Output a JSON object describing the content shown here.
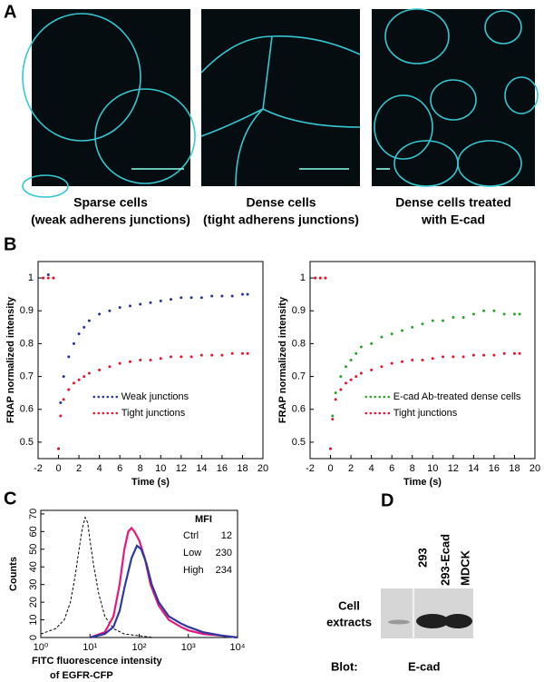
{
  "panel_labels": [
    "A",
    "B",
    "C",
    "D"
  ],
  "panel_a": {
    "captions": [
      [
        "Sparse cells",
        "(weak adherens junctions)"
      ],
      [
        "Dense cells",
        "(tight adherens junctions)"
      ],
      [
        "Dense cells treated",
        "with E-cad"
      ]
    ]
  },
  "chart_data": [
    {
      "type": "scatter",
      "xlabel": "Time (s)",
      "ylabel": "FRAP normalized intensity",
      "x": [
        -1.5,
        -1,
        -0.5,
        0,
        0.2,
        0.5,
        1,
        1.5,
        2,
        2.5,
        3,
        4,
        5,
        6,
        7,
        8,
        9,
        10,
        11,
        12,
        13,
        14,
        15,
        16,
        17,
        18,
        18.5
      ],
      "series": [
        {
          "name": "Weak junctions",
          "color": "#27339a",
          "values": [
            1.0,
            1.01,
            1.0,
            0.48,
            0.62,
            0.7,
            0.76,
            0.8,
            0.83,
            0.85,
            0.87,
            0.89,
            0.9,
            0.91,
            0.915,
            0.92,
            0.925,
            0.93,
            0.935,
            0.94,
            0.94,
            0.94,
            0.945,
            0.945,
            0.945,
            0.95,
            0.95
          ]
        },
        {
          "name": "Tight junctions",
          "color": "#e5132e",
          "values": [
            1.0,
            1.0,
            1.0,
            0.48,
            0.58,
            0.63,
            0.66,
            0.68,
            0.69,
            0.7,
            0.71,
            0.72,
            0.73,
            0.74,
            0.745,
            0.75,
            0.75,
            0.755,
            0.76,
            0.76,
            0.76,
            0.765,
            0.765,
            0.765,
            0.77,
            0.77,
            0.77
          ]
        }
      ],
      "xlim": [
        -2,
        20
      ],
      "xticks": [
        -2,
        0,
        2,
        4,
        6,
        8,
        10,
        12,
        14,
        16,
        18,
        20
      ],
      "ylim": [
        0.45,
        1.05
      ],
      "yticks": [
        0.5,
        0.6,
        0.7,
        0.8,
        0.9,
        1
      ],
      "legend": "lower right"
    },
    {
      "type": "scatter",
      "xlabel": "Time (s)",
      "ylabel": "FRAP normalized intensity",
      "x": [
        -1.5,
        -1,
        -0.5,
        0,
        0.2,
        0.5,
        1,
        1.5,
        2,
        2.5,
        3,
        4,
        5,
        6,
        7,
        8,
        9,
        10,
        11,
        12,
        13,
        14,
        15,
        16,
        17,
        18,
        18.5
      ],
      "series": [
        {
          "name": "E-cad Ab-treated dense cells",
          "color": "#2ea22e",
          "values": [
            1.0,
            1.0,
            1.0,
            0.48,
            0.58,
            0.65,
            0.7,
            0.73,
            0.75,
            0.77,
            0.79,
            0.8,
            0.82,
            0.83,
            0.84,
            0.85,
            0.86,
            0.87,
            0.87,
            0.88,
            0.88,
            0.89,
            0.9,
            0.9,
            0.89,
            0.89,
            0.89
          ]
        },
        {
          "name": "Tight junctions",
          "color": "#e5132e",
          "values": [
            1.0,
            1.0,
            1.0,
            0.48,
            0.57,
            0.63,
            0.66,
            0.68,
            0.69,
            0.7,
            0.71,
            0.72,
            0.73,
            0.74,
            0.745,
            0.75,
            0.75,
            0.755,
            0.76,
            0.76,
            0.76,
            0.765,
            0.765,
            0.765,
            0.77,
            0.77,
            0.77
          ]
        }
      ],
      "xlim": [
        -2,
        20
      ],
      "xticks": [
        -2,
        0,
        2,
        4,
        6,
        8,
        10,
        12,
        14,
        16,
        18,
        20
      ],
      "ylim": [
        0.45,
        1.05
      ],
      "yticks": [
        0.5,
        0.6,
        0.7,
        0.8,
        0.9,
        1
      ],
      "legend": "lower right"
    },
    {
      "type": "line",
      "xscale": "log",
      "xlabel": [
        "FITC  fluorescence   intensity",
        "of EGFR-CFP"
      ],
      "ylabel": "Counts",
      "legend_title": "MFI",
      "legend_values": [
        12,
        230,
        234
      ],
      "series": [
        {
          "name": "Ctrl",
          "color": "#000000",
          "line_style": "dashed",
          "x": [
            1,
            2,
            3,
            4,
            5,
            6,
            7,
            8,
            9,
            10,
            12,
            15,
            20,
            30,
            50,
            100,
            200
          ],
          "values": [
            2,
            5,
            10,
            20,
            35,
            50,
            62,
            68,
            65,
            55,
            40,
            25,
            12,
            5,
            2,
            1,
            0
          ]
        },
        {
          "name": "Low",
          "color": "#e8177a",
          "line_style": "solid",
          "x": [
            10,
            20,
            30,
            40,
            50,
            60,
            70,
            80,
            100,
            130,
            170,
            250,
            400,
            700,
            1000,
            2000,
            5000,
            10000
          ],
          "values": [
            0,
            3,
            12,
            30,
            50,
            60,
            62,
            60,
            55,
            45,
            30,
            18,
            10,
            6,
            4,
            2,
            1,
            0
          ]
        },
        {
          "name": "High",
          "color": "#2a3aa0",
          "line_style": "solid",
          "x": [
            10,
            20,
            30,
            40,
            50,
            70,
            90,
            110,
            140,
            180,
            250,
            400,
            700,
            1000,
            2000,
            5000,
            10000
          ],
          "values": [
            0,
            2,
            6,
            15,
            28,
            45,
            52,
            50,
            42,
            30,
            20,
            12,
            8,
            6,
            3,
            1,
            0
          ]
        }
      ],
      "xlim": [
        1,
        10000
      ],
      "xticks": [
        {
          "value": 1,
          "label": "10⁰"
        },
        {
          "value": 10,
          "label": "10¹"
        },
        {
          "value": 100,
          "label": "10²"
        },
        {
          "value": 1000,
          "label": "10³"
        },
        {
          "value": 10000,
          "label": "10⁴"
        }
      ],
      "ylim": [
        0,
        72
      ],
      "yticks": [
        0,
        10,
        20,
        30,
        40,
        50,
        60,
        70
      ]
    }
  ],
  "panel_d": {
    "lanes": [
      "293",
      "293-Ecad",
      "MDCK"
    ],
    "row_label": [
      "Cell",
      "extracts"
    ],
    "blot_label": "Blot:",
    "blot_target": "E-cad"
  }
}
